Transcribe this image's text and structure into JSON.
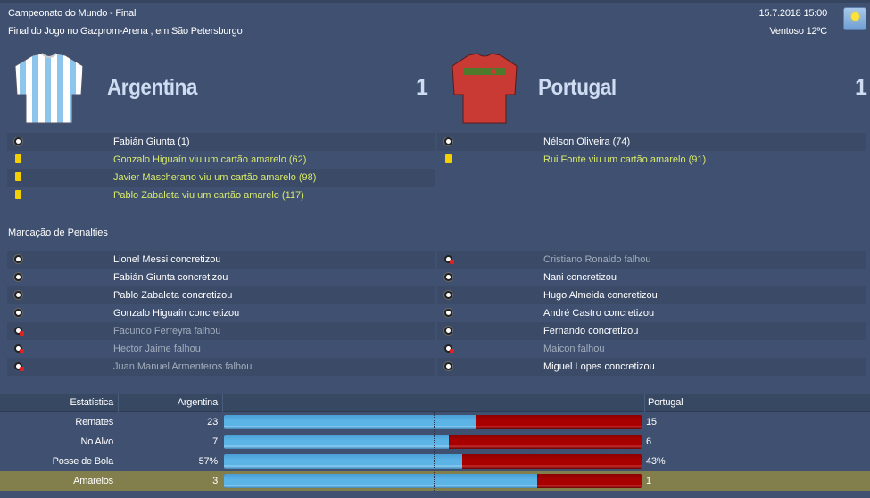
{
  "match": {
    "competition": "Campeonato do Mundo - Final",
    "venue": "Final do Jogo no Gazprom-Arena , em São Petersburgo",
    "datetime": "15.7.2018 15:00",
    "weather": "Ventoso 12ºC",
    "weather_icon": "sun-icon"
  },
  "home": {
    "name": "Argentina",
    "score": "1",
    "colors": [
      "#8ec5ec",
      "#ffffff"
    ],
    "events": [
      {
        "type": "goal",
        "text": "Fabián Giunta (1)"
      },
      {
        "type": "yellow",
        "text": "Gonzalo Higuaín viu um cartão amarelo (62)"
      },
      {
        "type": "yellow",
        "text": "Javier Mascherano viu um cartão amarelo (98)"
      },
      {
        "type": "yellow",
        "text": "Pablo Zabaleta viu um cartão amarelo (117)"
      }
    ],
    "penalties": [
      {
        "scored": true,
        "text": "Lionel Messi concretizou"
      },
      {
        "scored": true,
        "text": "Fabián Giunta concretizou"
      },
      {
        "scored": true,
        "text": "Pablo Zabaleta concretizou"
      },
      {
        "scored": true,
        "text": "Gonzalo Higuaín concretizou"
      },
      {
        "scored": false,
        "text": "Facundo Ferreyra falhou"
      },
      {
        "scored": false,
        "text": "Hector Jaime falhou"
      },
      {
        "scored": false,
        "text": "Juan Manuel Armenteros falhou"
      }
    ]
  },
  "away": {
    "name": "Portugal",
    "score": "1",
    "colors": [
      "#c83a33",
      "#4e7a2c"
    ],
    "events": [
      {
        "type": "goal",
        "text": "Nélson Oliveira (74)"
      },
      {
        "type": "yellow",
        "text": "Rui Fonte viu um cartão amarelo (91)"
      }
    ],
    "penalties": [
      {
        "scored": false,
        "text": "Cristiano Ronaldo falhou"
      },
      {
        "scored": true,
        "text": "Nani concretizou"
      },
      {
        "scored": true,
        "text": "Hugo Almeida concretizou"
      },
      {
        "scored": true,
        "text": "André Castro concretizou"
      },
      {
        "scored": true,
        "text": "Fernando concretizou"
      },
      {
        "scored": false,
        "text": "Maicon falhou"
      },
      {
        "scored": true,
        "text": "Miguel Lopes concretizou"
      }
    ]
  },
  "penalties_title": "Marcação de Penalties",
  "stats": {
    "headers": {
      "stat": "Estatística",
      "home": "Argentina",
      "away": "Portugal"
    },
    "rows": [
      {
        "label": "Remates",
        "home": "23",
        "away": "15",
        "home_value": 23,
        "away_value": 15
      },
      {
        "label": "No Alvo",
        "home": "7",
        "away": "6",
        "home_value": 7,
        "away_value": 6
      },
      {
        "label": "Posse de Bola",
        "home": "57%",
        "away": "43%",
        "home_value": 57,
        "away_value": 43
      },
      {
        "label": "Amarelos",
        "home": "3",
        "away": "1",
        "home_value": 3,
        "away_value": 1,
        "highlighted": true
      }
    ],
    "home_bar_color": "#5bb3e6",
    "away_bar_color": "#a80000"
  }
}
